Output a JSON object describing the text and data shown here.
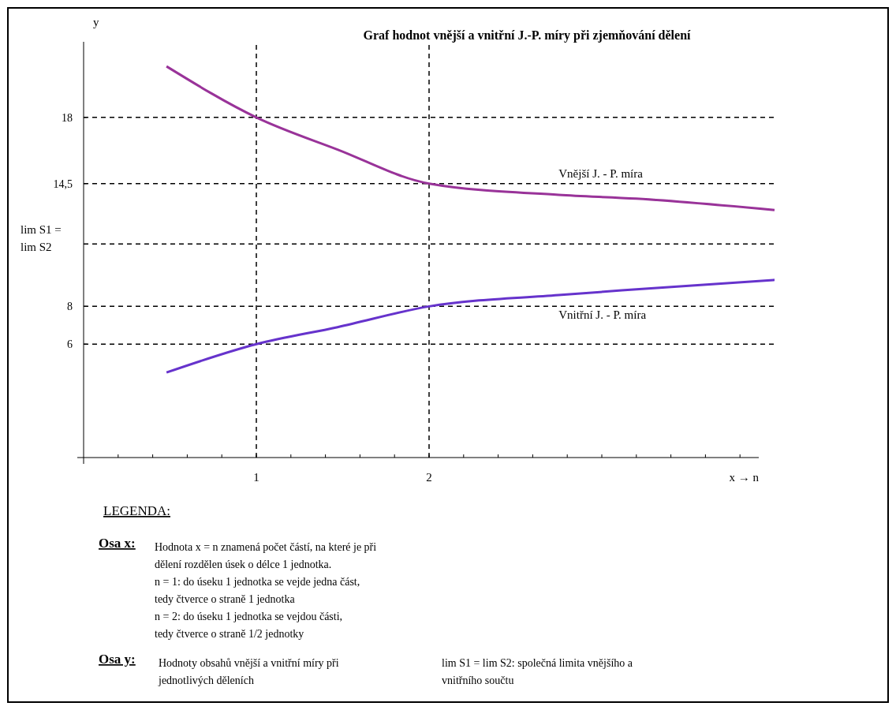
{
  "chart_data": {
    "type": "line",
    "title": "Graf hodnot vnější a vnitřní J.-P. míry při zjemňování dělení",
    "xlabel": "x → n",
    "ylabel": "y",
    "xlim": [
      0,
      4
    ],
    "ylim": [
      0,
      22
    ],
    "xticks": [
      {
        "value": 0.2,
        "label": null
      },
      {
        "value": 0.4,
        "label": null
      },
      {
        "value": 0.6,
        "label": null
      },
      {
        "value": 0.8,
        "label": null
      },
      1,
      {
        "value": 1.2,
        "label": null
      },
      {
        "value": 1.4,
        "label": null
      },
      {
        "value": 1.6,
        "label": null
      },
      {
        "value": 1.8,
        "label": null
      },
      2,
      {
        "value": 2.2,
        "label": null
      },
      {
        "value": 2.4,
        "label": null
      },
      {
        "value": 2.6,
        "label": null
      },
      {
        "value": 2.8,
        "label": null
      },
      {
        "value": 3,
        "label": null
      },
      {
        "value": 3.2,
        "label": null
      },
      {
        "value": 3.4,
        "label": null
      },
      {
        "value": 3.6,
        "label": null
      },
      {
        "value": 3.8,
        "label": null
      }
    ],
    "yticks": [
      6,
      8,
      {
        "value": 14.5,
        "label": "14,5"
      },
      18
    ],
    "grid": false,
    "marker": "none",
    "line_style": "solid",
    "series": [
      {
        "name": "Vnější J. - P. míra",
        "color": "#993399",
        "x": [
          0.48,
          1,
          1.47,
          2,
          2.75,
          3.2,
          4
        ],
        "values": [
          20.7,
          18,
          16.3,
          14.5,
          13.9,
          13.7,
          13.1
        ]
      },
      {
        "name": "Vnitřní J. - P. míra",
        "color": "#6633cc",
        "x": [
          0.48,
          1,
          1.47,
          2,
          2.75,
          3.2,
          4
        ],
        "values": [
          4.5,
          6,
          6.9,
          8,
          8.6,
          8.9,
          9.4
        ]
      }
    ],
    "ref_lines": [
      {
        "axis": "y",
        "value": 18,
        "label": null,
        "line_style": "dashed",
        "color": "#000000"
      },
      {
        "axis": "y",
        "value": 14.5,
        "label": null,
        "line_style": "dashed",
        "color": "#000000"
      },
      {
        "axis": "y",
        "value": 11.3,
        "label": "lim S1 =\nlim S2",
        "line_style": "dashed",
        "color": "#000000"
      },
      {
        "axis": "y",
        "value": 8,
        "label": null,
        "line_style": "dashed",
        "color": "#000000"
      },
      {
        "axis": "y",
        "value": 6,
        "label": null,
        "line_style": "dashed",
        "color": "#000000"
      },
      {
        "axis": "x",
        "value": 1,
        "label": null,
        "line_style": "dashed",
        "color": "#000000"
      },
      {
        "axis": "x",
        "value": 2,
        "label": null,
        "line_style": "dashed",
        "color": "#000000"
      }
    ],
    "annotations": [
      "LEGENDA:",
      "Osa x:",
      "Hodnota x = n znamená počet částí, na které je při\ndělení rozdělen úsek o délce 1 jednotka.\nn = 1: do úseku 1 jednotka se vejde jedna část,\ntedy čtverce o straně 1 jednotka\nn = 2: do úseku 1 jednotka se vejdou části,\ntedy čtverce o straně 1/2 jednotky",
      "Osa y:",
      "Hodnoty obsahů vnější a vnitřní míry při\njednotlivých děleních",
      "lim S1 = lim S2: společná limita vnějšího a\nvnitřního součtu"
    ]
  }
}
